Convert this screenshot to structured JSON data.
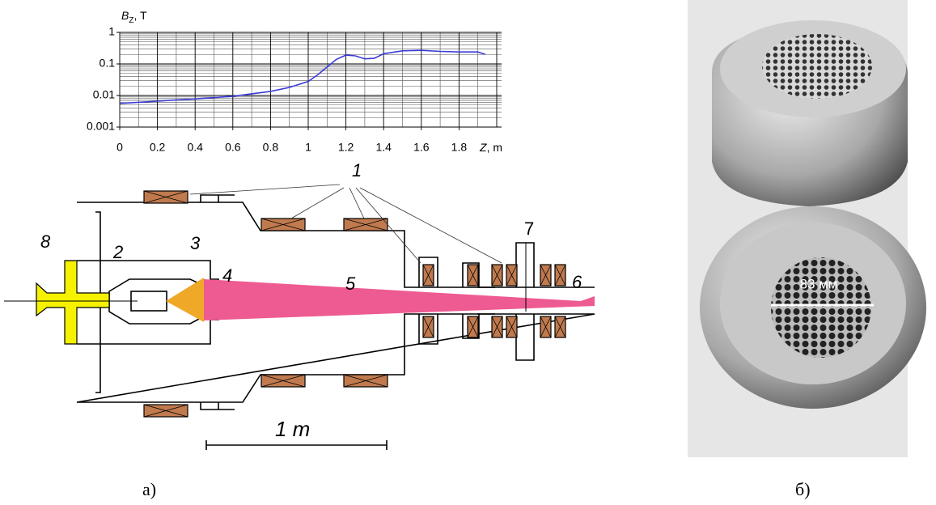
{
  "chart_data": {
    "type": "line",
    "y_label": {
      "symbol": "B",
      "subscript": "Z",
      "unit": ", T"
    },
    "x_label": {
      "symbol": "Z",
      "unit": ", m"
    },
    "x": [
      0,
      0.2,
      0.4,
      0.6,
      0.8,
      0.9,
      1.0,
      1.05,
      1.1,
      1.15,
      1.2,
      1.25,
      1.3,
      1.35,
      1.4,
      1.5,
      1.6,
      1.7,
      1.8,
      1.9,
      1.94
    ],
    "series": [
      {
        "color": "#3a3ad8",
        "values": [
          0.0056,
          0.0066,
          0.0078,
          0.0095,
          0.0135,
          0.018,
          0.028,
          0.045,
          0.08,
          0.14,
          0.19,
          0.18,
          0.145,
          0.15,
          0.21,
          0.26,
          0.27,
          0.25,
          0.24,
          0.24,
          0.2
        ]
      }
    ],
    "xlim": [
      0,
      2
    ],
    "ylim": [
      0.001,
      1
    ],
    "xticks": [
      0,
      0.2,
      0.4,
      0.6,
      0.8,
      1,
      1.2,
      1.4,
      1.6,
      1.8
    ],
    "yticks": [
      0.001,
      0.01,
      0.1,
      1
    ],
    "log_y": true,
    "grid": true
  },
  "diagram": {
    "labels": [
      "1",
      "2",
      "3",
      "4",
      "5",
      "6",
      "7",
      "8"
    ],
    "scale_bar": "1 m",
    "caption": "а)"
  },
  "photo": {
    "label": "83 мм",
    "caption": "б)"
  }
}
